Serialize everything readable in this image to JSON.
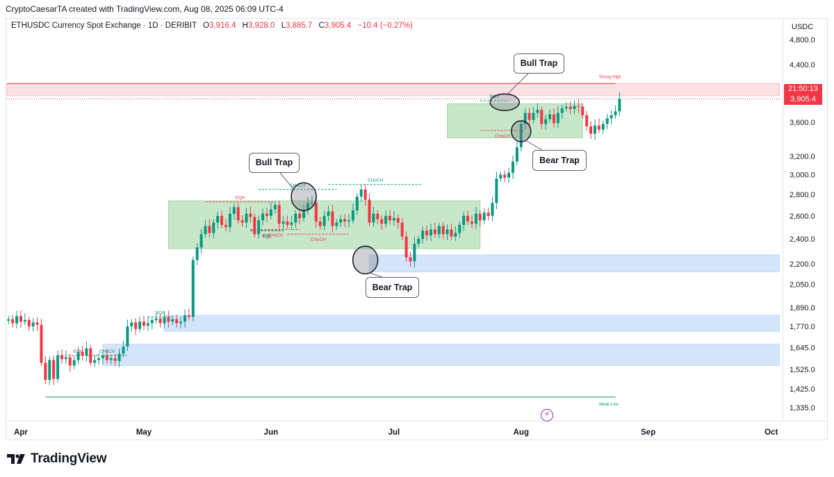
{
  "credit": "CryptoCaesarTA created with TradingView.com, Aug 08, 2025 06:09 UTC-4",
  "legend": {
    "symbol": "ETHUSDC Currency Spot Exchange · 1D · DERIBIT",
    "o_label": "O",
    "o_value": "3,916.4",
    "h_label": "H",
    "h_value": "3,928.0",
    "l_label": "L",
    "l_value": "3,885.7",
    "c_label": "C",
    "c_value": "3,905.4",
    "change": "−10.4 (−0.27%)"
  },
  "currency": "USDC",
  "price_tags": {
    "countdown": "21:50:13",
    "last": "3,905.4"
  },
  "logo_text": "TradingView",
  "callouts": {
    "bull_trap_1": "Bull Trap",
    "bear_trap_1": "Bear Trap",
    "bull_trap_2": "Bull Trap",
    "bear_trap_2": "Bear Trap"
  },
  "colors": {
    "up": "#089981",
    "down": "#f23645",
    "green_zone": "#a5d6a7",
    "blue_zone": "#bbdefb",
    "red_zone": "#ffcdd2"
  },
  "chart_data": {
    "type": "candlestick",
    "symbol": "ETHUSDC",
    "timeframe": "1D",
    "y_axis": {
      "scale": "log",
      "ticks": [
        4800,
        4400,
        3600,
        3200,
        3000,
        2800,
        2600,
        2400,
        2200,
        2050,
        1890,
        1770,
        1645,
        1525,
        1425,
        1335
      ],
      "tick_labels": [
        "4,800.0",
        "4,400.0",
        "3,600.0",
        "3,200.0",
        "3,000.0",
        "2,800.0",
        "2,600.0",
        "2,400.0",
        "2,200.0",
        "2,050.0",
        "1,890.0",
        "1,770.0",
        "1,645.0",
        "1,525.0",
        "1,425.0",
        "1,335.0"
      ],
      "ylim": [
        1290,
        5100
      ]
    },
    "x_axis": {
      "labels": [
        "Apr",
        "May",
        "Jun",
        "Jul",
        "Aug",
        "Sep",
        "Oct"
      ],
      "label_day_index": [
        0,
        30,
        61,
        91,
        122,
        153,
        183
      ],
      "xlim_days": [
        -2,
        188
      ]
    },
    "close_series_start_day": -3,
    "close": [
      1815,
      1790,
      1835,
      1800,
      1810,
      1770,
      1795,
      1780,
      1560,
      1470,
      1575,
      1475,
      1600,
      1580,
      1590,
      1545,
      1575,
      1620,
      1600,
      1640,
      1560,
      1575,
      1585,
      1600,
      1575,
      1585,
      1570,
      1610,
      1650,
      1770,
      1795,
      1755,
      1800,
      1775,
      1790,
      1810,
      1820,
      1790,
      1825,
      1800,
      1815,
      1790,
      1800,
      1840,
      1830,
      2230,
      2330,
      2440,
      2510,
      2450,
      2540,
      2600,
      2520,
      2500,
      2620,
      2680,
      2560,
      2540,
      2620,
      2590,
      2440,
      2560,
      2620,
      2600,
      2660,
      2700,
      2530,
      2550,
      2520,
      2540,
      2620,
      2580,
      2650,
      2720,
      2720,
      2550,
      2510,
      2600,
      2640,
      2510,
      2540,
      2570,
      2550,
      2560,
      2650,
      2780,
      2850,
      2750,
      2540,
      2620,
      2570,
      2530,
      2600,
      2560,
      2580,
      2540,
      2420,
      2250,
      2220,
      2360,
      2400,
      2470,
      2430,
      2480,
      2440,
      2510,
      2440,
      2480,
      2420,
      2450,
      2520,
      2600,
      2550,
      2530,
      2620,
      2560,
      2630,
      2600,
      2720,
      2960,
      3000,
      2970,
      3020,
      3140,
      3300,
      3580,
      3720,
      3630,
      3720,
      3760,
      3580,
      3640,
      3700,
      3590,
      3720,
      3780,
      3800,
      3770,
      3810,
      3800,
      3690,
      3550,
      3460,
      3560,
      3510,
      3580,
      3650,
      3690,
      3740,
      3905
    ],
    "zones": [
      {
        "type": "demand",
        "color": "green",
        "low": 2320,
        "high": 2740
      },
      {
        "type": "demand",
        "color": "green",
        "low": 3410,
        "high": 3840
      },
      {
        "type": "fvg",
        "color": "blue",
        "low": 2140,
        "high": 2270
      },
      {
        "type": "fvg",
        "color": "blue",
        "low": 1740,
        "high": 1840
      },
      {
        "type": "fvg",
        "color": "blue",
        "low": 1545,
        "high": 1665
      },
      {
        "type": "supply",
        "color": "red",
        "low": 3950,
        "high": 4120
      }
    ],
    "levels": [
      {
        "name": "Strong High",
        "value": 4120
      },
      {
        "name": "Weak Low",
        "value": 1385
      }
    ],
    "structure_labels": [
      "EQH",
      "CHoCH",
      "BOS",
      "EQH",
      "CHoCH",
      "EQL",
      "CHoCH",
      "CHoCH",
      "CHoCH",
      "BOS",
      "CHoCH"
    ],
    "annotations": [
      "Bull Trap",
      "Bear Trap",
      "Bull Trap",
      "Bear Trap"
    ],
    "last_price": 3905.4
  }
}
